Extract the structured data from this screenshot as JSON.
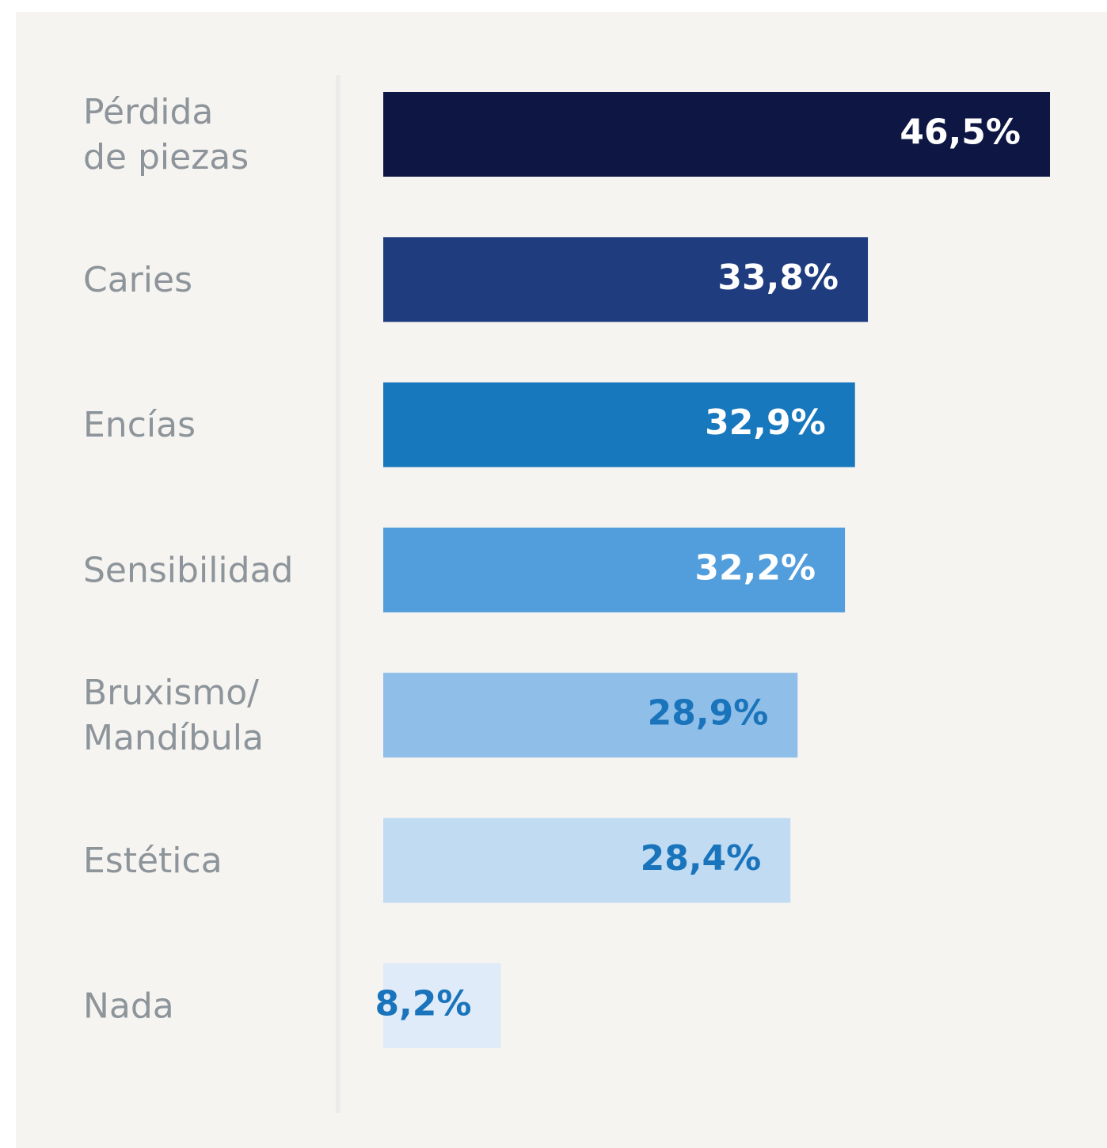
{
  "chart_data": {
    "type": "bar",
    "orientation": "horizontal",
    "categories": [
      "Pérdida\nde piezas",
      "Caries",
      "Encías",
      "Sensibilidad",
      "Bruxismo/\nMandíbula",
      "Estética",
      "Nada"
    ],
    "values": [
      46.5,
      33.8,
      32.9,
      32.2,
      28.9,
      28.4,
      8.2
    ],
    "value_labels": [
      "46,5%",
      "33,8%",
      "32,9%",
      "32,2%",
      "28,9%",
      "28,4%",
      "8,2%"
    ],
    "colors": [
      "#0e1744",
      "#1e3c7e",
      "#1878be",
      "#529edc",
      "#8fbfe8",
      "#c0dbf2",
      "#dfebf8"
    ],
    "label_colors": [
      "#ffffff",
      "#ffffff",
      "#ffffff",
      "#ffffff",
      "#1a74bb",
      "#1a74bb",
      "#1a74bb"
    ]
  }
}
